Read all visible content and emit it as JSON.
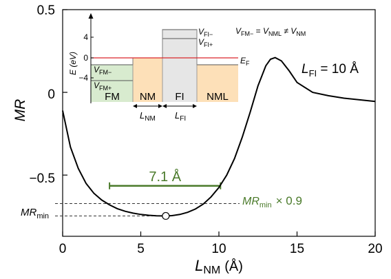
{
  "chart_data": {
    "type": "line",
    "xlabel": {
      "main": "L",
      "sub": "NM",
      "unit": "(Å)"
    },
    "ylabel": "MR",
    "xlim": [
      0,
      20
    ],
    "ylim": [
      -0.87,
      0.5
    ],
    "xticks": [
      0,
      5,
      10,
      15,
      20
    ],
    "xtick_labels": [
      "0",
      "5",
      "10",
      "15",
      "20"
    ],
    "yticks": [
      0.5,
      0,
      -0.5
    ],
    "ytick_labels": [
      "0.5",
      "0",
      "−0.5"
    ],
    "grid": false,
    "series": [
      {
        "color": "#000000",
        "x": [
          0,
          0.5,
          1.0,
          1.5,
          2.0,
          2.5,
          3.0,
          3.5,
          4.0,
          4.5,
          5.0,
          5.5,
          6.0,
          6.6,
          7.0,
          7.5,
          8.0,
          8.5,
          9.0,
          9.5,
          10.0,
          10.5,
          11.0,
          11.5,
          12.0,
          12.5,
          13.0,
          13.3,
          13.6,
          14.0,
          14.5,
          15.0,
          16.0,
          17.0,
          18.0,
          19.0,
          20.0
        ],
        "y": [
          -0.11,
          -0.33,
          -0.46,
          -0.55,
          -0.61,
          -0.651,
          -0.68,
          -0.703,
          -0.719,
          -0.73,
          -0.738,
          -0.743,
          -0.746,
          -0.747,
          -0.745,
          -0.738,
          -0.725,
          -0.705,
          -0.675,
          -0.632,
          -0.575,
          -0.5,
          -0.4,
          -0.27,
          -0.12,
          0.04,
          0.16,
          0.2,
          0.21,
          0.19,
          0.13,
          0.06,
          0.0,
          -0.02,
          -0.035,
          -0.045,
          -0.055
        ]
      }
    ],
    "minimum_point": {
      "x": 6.6,
      "y": -0.747,
      "label_main": "MR",
      "label_sub": "min"
    },
    "threshold": {
      "y": -0.672,
      "label_main": "MR",
      "label_sub": "min",
      "label_tail": "× 0.9"
    },
    "width_bracket": {
      "x_start": 3.0,
      "x_end": 10.1,
      "y": -0.565,
      "label": "7.1 Å",
      "color": "#4a7a2a"
    },
    "annotation_lfi": {
      "main": "L",
      "sub": "FI",
      "tail": " = 10 Å"
    }
  },
  "inset": {
    "ylabel": "E (eV)",
    "ylim": [
      -6,
      6
    ],
    "yticks": [
      4,
      0,
      -4
    ],
    "ytick_labels": [
      "4",
      "0",
      "−4"
    ],
    "fermi_label_main": "E",
    "fermi_label_sub": "F",
    "equation": {
      "a": "V",
      "a_sub": "FM−",
      "b": "V",
      "b_sub": "NML",
      "c": "V",
      "c_sub": "NM",
      "eq": " = ",
      "neq": " ≠ "
    },
    "regions": [
      {
        "name": "FM",
        "color": "#d8ebcf",
        "level_top": -1.2,
        "level_bottom": -3.2,
        "label_top_main": "V",
        "label_top_sub": "FM−",
        "label_bottom_main": "V",
        "label_bottom_sub": "FM+"
      },
      {
        "name": "NM",
        "color": "#fde0b8",
        "level": 0.0
      },
      {
        "name": "FI",
        "color": "#e6e6e6",
        "level_top": 5.0,
        "level_bottom": 3.0,
        "label_top_main": "V",
        "label_top_sub": "FI−",
        "label_bottom_main": "V",
        "label_bottom_sub": "FI+"
      },
      {
        "name": "NML",
        "color": "#fde0b8",
        "level": -1.2
      }
    ],
    "widths": [
      {
        "main": "L",
        "sub": "NM"
      },
      {
        "main": "L",
        "sub": "FI"
      }
    ]
  },
  "colors": {
    "fermi": "#d9252a",
    "green_text": "#4a7a2a",
    "dash": "#333333"
  }
}
